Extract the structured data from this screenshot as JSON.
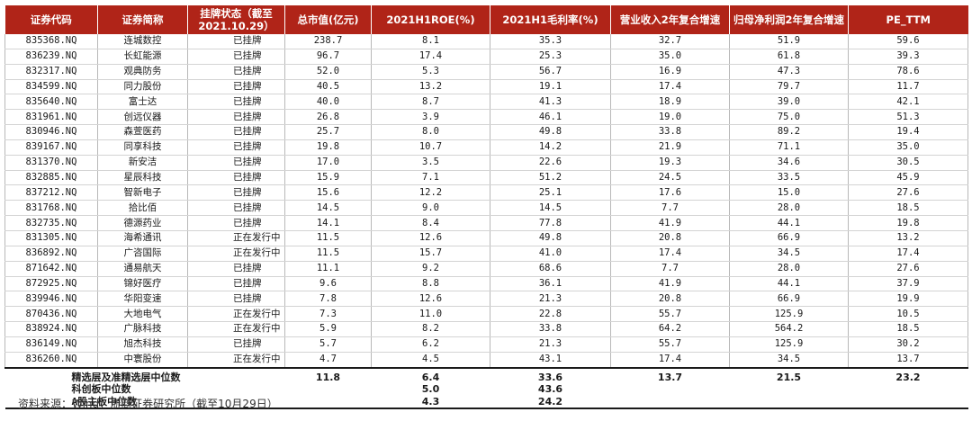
{
  "table": {
    "headers": [
      "证券代码",
      "证券简称",
      "挂牌状态（截至2021.10.29）",
      "总市值(亿元)",
      "2021H1ROE(%)",
      "2021H1毛利率(%)",
      "营业收入2年复合增速",
      "归母净利润2年复合增速",
      "PE_TTM"
    ],
    "rows": [
      [
        "835368.NQ",
        "连城数控",
        "已挂牌",
        "238.7",
        "8.1",
        "35.3",
        "32.7",
        "51.9",
        "59.6"
      ],
      [
        "836239.NQ",
        "长虹能源",
        "已挂牌",
        "96.7",
        "17.4",
        "25.3",
        "35.0",
        "61.8",
        "39.3"
      ],
      [
        "832317.NQ",
        "观典防务",
        "已挂牌",
        "52.0",
        "5.3",
        "56.7",
        "16.9",
        "47.3",
        "78.6"
      ],
      [
        "834599.NQ",
        "同力股份",
        "已挂牌",
        "40.5",
        "13.2",
        "19.1",
        "17.4",
        "79.7",
        "11.7"
      ],
      [
        "835640.NQ",
        "富士达",
        "已挂牌",
        "40.0",
        "8.7",
        "41.3",
        "18.9",
        "39.0",
        "42.1"
      ],
      [
        "831961.NQ",
        "创远仪器",
        "已挂牌",
        "26.8",
        "3.9",
        "46.1",
        "19.0",
        "75.0",
        "51.3"
      ],
      [
        "830946.NQ",
        "森萱医药",
        "已挂牌",
        "25.7",
        "8.0",
        "49.8",
        "33.8",
        "89.2",
        "19.4"
      ],
      [
        "839167.NQ",
        "同享科技",
        "已挂牌",
        "19.8",
        "10.7",
        "14.2",
        "21.9",
        "71.1",
        "35.0"
      ],
      [
        "831370.NQ",
        "新安洁",
        "已挂牌",
        "17.0",
        "3.5",
        "22.6",
        "19.3",
        "34.6",
        "30.5"
      ],
      [
        "832885.NQ",
        "星辰科技",
        "已挂牌",
        "15.9",
        "7.1",
        "51.2",
        "24.5",
        "33.5",
        "45.9"
      ],
      [
        "837212.NQ",
        "智新电子",
        "已挂牌",
        "15.6",
        "12.2",
        "25.1",
        "17.6",
        "15.0",
        "27.6"
      ],
      [
        "831768.NQ",
        "拾比佰",
        "已挂牌",
        "14.5",
        "9.0",
        "14.5",
        "7.7",
        "28.0",
        "18.5"
      ],
      [
        "832735.NQ",
        "德源药业",
        "已挂牌",
        "14.1",
        "8.4",
        "77.8",
        "41.9",
        "44.1",
        "19.8"
      ],
      [
        "831305.NQ",
        "海希通讯",
        "正在发行中",
        "11.5",
        "12.6",
        "49.8",
        "20.8",
        "66.9",
        "13.2"
      ],
      [
        "836892.NQ",
        "广咨国际",
        "正在发行中",
        "11.5",
        "15.7",
        "41.0",
        "17.4",
        "34.5",
        "17.4"
      ],
      [
        "871642.NQ",
        "通易航天",
        "已挂牌",
        "11.1",
        "9.2",
        "68.6",
        "7.7",
        "28.0",
        "27.6"
      ],
      [
        "872925.NQ",
        "锦好医疗",
        "已挂牌",
        "9.6",
        "8.8",
        "36.1",
        "41.9",
        "44.1",
        "37.9"
      ],
      [
        "839946.NQ",
        "华阳变速",
        "已挂牌",
        "7.8",
        "12.6",
        "21.3",
        "20.8",
        "66.9",
        "19.9"
      ],
      [
        "870436.NQ",
        "大地电气",
        "正在发行中",
        "7.3",
        "11.0",
        "22.8",
        "55.7",
        "125.9",
        "10.5"
      ],
      [
        "838924.NQ",
        "广脉科技",
        "正在发行中",
        "5.9",
        "8.2",
        "33.8",
        "64.2",
        "564.2",
        "18.5"
      ],
      [
        "836149.NQ",
        "旭杰科技",
        "已挂牌",
        "5.7",
        "6.2",
        "21.3",
        "55.7",
        "125.9",
        "30.2"
      ],
      [
        "836260.NQ",
        "中寰股份",
        "正在发行中",
        "4.7",
        "4.5",
        "43.1",
        "17.4",
        "34.5",
        "13.7"
      ]
    ],
    "summary": [
      {
        "label": "精选层及准精选层中位数",
        "values": [
          "11.8",
          "6.4",
          "33.6",
          "13.7",
          "21.5",
          "23.2"
        ]
      },
      {
        "label": "科创板中位数",
        "values": [
          "",
          "5.0",
          "43.6",
          "",
          "",
          ""
        ]
      },
      {
        "label": "A股主板中位数",
        "values": [
          "",
          "4.3",
          "24.2",
          "",
          "",
          ""
        ]
      }
    ]
  },
  "source_note": "资料来源：Wind，浙商证券研究所（截至10月29日）"
}
